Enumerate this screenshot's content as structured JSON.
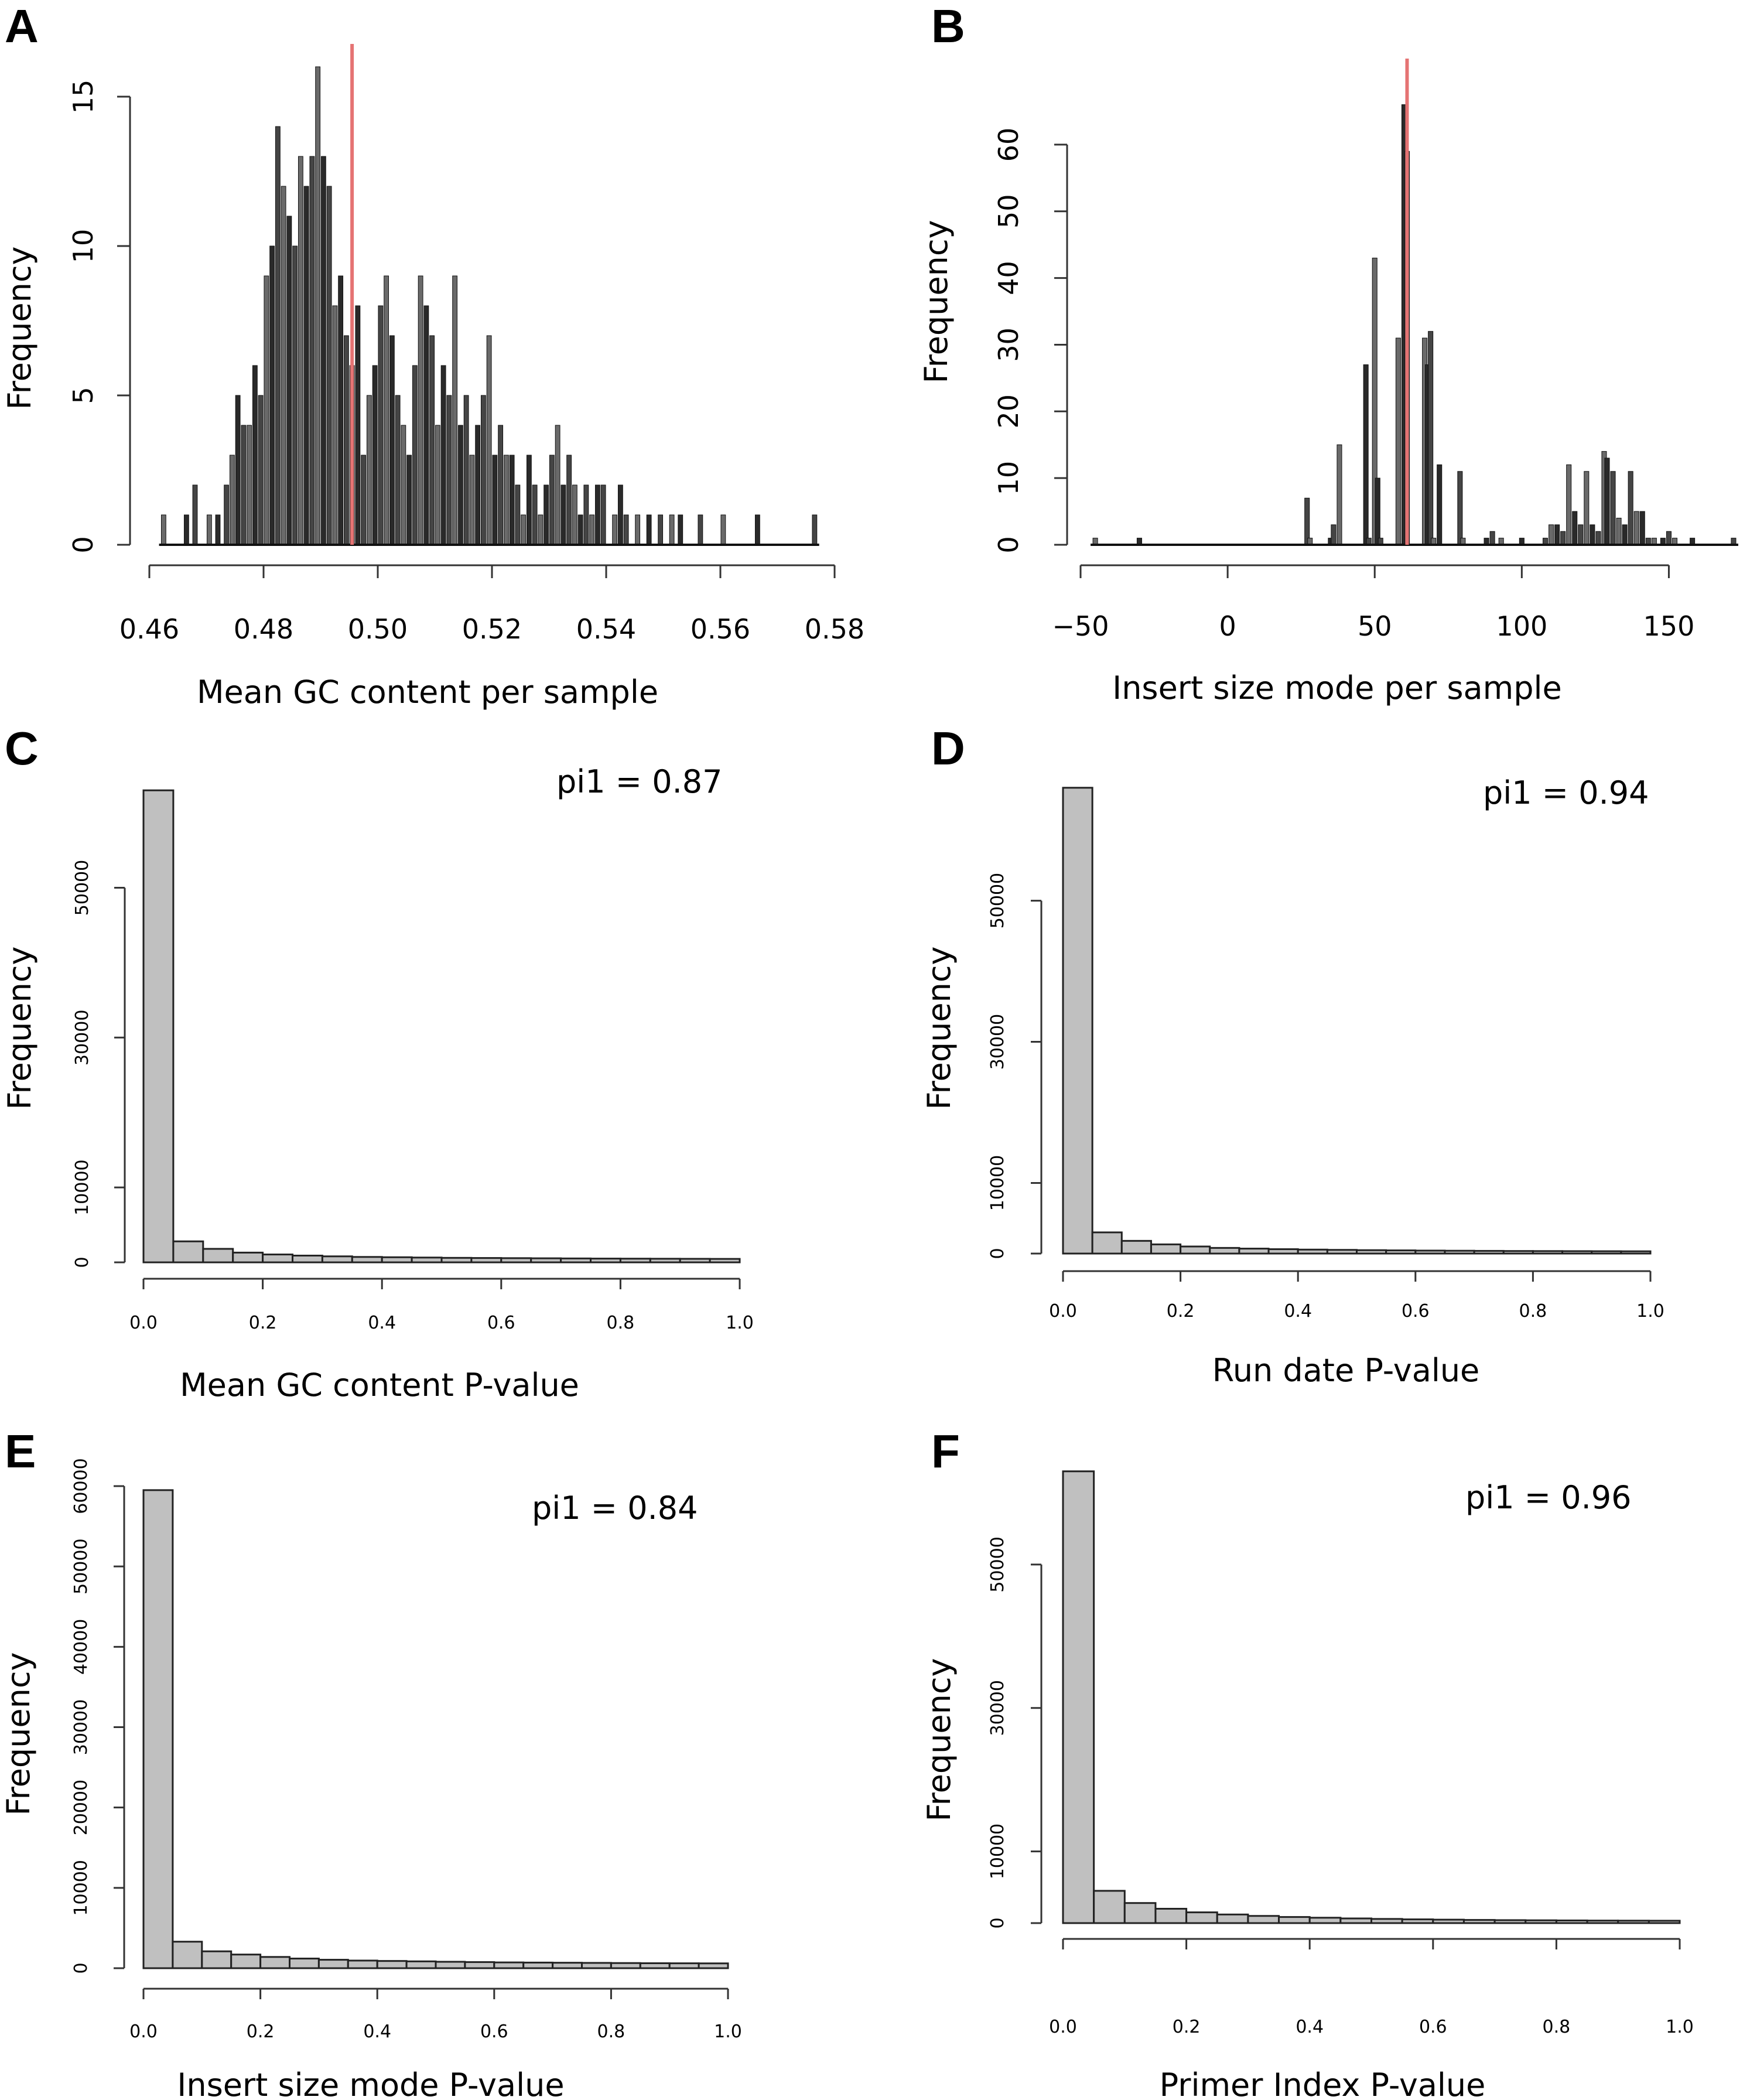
{
  "chart_data": [
    {
      "panel": "A",
      "type": "bar",
      "style": "dense-histogram",
      "xlabel": "Mean GC content per sample",
      "ylabel": "Frequency",
      "xlim": [
        0.46,
        0.58
      ],
      "ylim": [
        0,
        15
      ],
      "xticks": [
        0.46,
        0.48,
        0.5,
        0.52,
        0.54,
        0.56,
        0.58
      ],
      "xtick_labels": [
        "0.46",
        "0.48",
        "0.50",
        "0.52",
        "0.54",
        "0.56",
        "0.58"
      ],
      "yticks": [
        0,
        5,
        10,
        15
      ],
      "ytick_labels": [
        "0",
        "5",
        "10",
        "15"
      ],
      "bin_width": 0.0005,
      "bars": [
        [
          0.4625,
          1
        ],
        [
          0.4665,
          1
        ],
        [
          0.468,
          2
        ],
        [
          0.4705,
          1
        ],
        [
          0.472,
          1
        ],
        [
          0.4735,
          2
        ],
        [
          0.4745,
          3
        ],
        [
          0.4755,
          5
        ],
        [
          0.4765,
          4
        ],
        [
          0.4775,
          4
        ],
        [
          0.4785,
          6
        ],
        [
          0.4795,
          5
        ],
        [
          0.4805,
          9
        ],
        [
          0.4815,
          10
        ],
        [
          0.4825,
          14
        ],
        [
          0.4835,
          12
        ],
        [
          0.4845,
          11
        ],
        [
          0.4855,
          10
        ],
        [
          0.4865,
          13
        ],
        [
          0.4875,
          12
        ],
        [
          0.4885,
          13
        ],
        [
          0.4895,
          16
        ],
        [
          0.4905,
          13
        ],
        [
          0.4915,
          12
        ],
        [
          0.4925,
          8
        ],
        [
          0.4935,
          9
        ],
        [
          0.4945,
          7
        ],
        [
          0.4955,
          6
        ],
        [
          0.4965,
          8
        ],
        [
          0.4975,
          3
        ],
        [
          0.4985,
          5
        ],
        [
          0.4995,
          6
        ],
        [
          0.5005,
          8
        ],
        [
          0.5015,
          9
        ],
        [
          0.5025,
          7
        ],
        [
          0.5035,
          5
        ],
        [
          0.5045,
          4
        ],
        [
          0.5055,
          3
        ],
        [
          0.5065,
          6
        ],
        [
          0.5075,
          9
        ],
        [
          0.5085,
          8
        ],
        [
          0.5095,
          7
        ],
        [
          0.5105,
          4
        ],
        [
          0.5115,
          6
        ],
        [
          0.5125,
          5
        ],
        [
          0.5135,
          9
        ],
        [
          0.5145,
          4
        ],
        [
          0.5155,
          5
        ],
        [
          0.5165,
          3
        ],
        [
          0.5175,
          4
        ],
        [
          0.5185,
          5
        ],
        [
          0.5195,
          7
        ],
        [
          0.5205,
          3
        ],
        [
          0.5215,
          4
        ],
        [
          0.5225,
          3
        ],
        [
          0.5235,
          3
        ],
        [
          0.5245,
          2
        ],
        [
          0.5255,
          1
        ],
        [
          0.5265,
          3
        ],
        [
          0.5275,
          2
        ],
        [
          0.5285,
          1
        ],
        [
          0.5295,
          2
        ],
        [
          0.5305,
          3
        ],
        [
          0.5315,
          4
        ],
        [
          0.5325,
          2
        ],
        [
          0.5335,
          3
        ],
        [
          0.5345,
          2
        ],
        [
          0.5355,
          1
        ],
        [
          0.5365,
          2
        ],
        [
          0.5375,
          1
        ],
        [
          0.5385,
          2
        ],
        [
          0.5395,
          2
        ],
        [
          0.5415,
          1
        ],
        [
          0.5425,
          2
        ],
        [
          0.5435,
          1
        ],
        [
          0.5455,
          1
        ],
        [
          0.5475,
          1
        ],
        [
          0.5495,
          1
        ],
        [
          0.5515,
          1
        ],
        [
          0.553,
          1
        ],
        [
          0.5565,
          1
        ],
        [
          0.5605,
          1
        ],
        [
          0.5665,
          1
        ],
        [
          0.5765,
          1
        ]
      ],
      "reference_line": 0.4955
    },
    {
      "panel": "B",
      "type": "bar",
      "style": "dense-histogram",
      "xlabel": "Insert size mode per sample",
      "ylabel": "Frequency",
      "xlim": [
        -50,
        175
      ],
      "ylim": [
        0,
        65
      ],
      "xticks": [
        -50,
        0,
        50,
        100,
        150
      ],
      "xtick_labels": [
        "−50",
        "0",
        "50",
        "100",
        "150"
      ],
      "yticks": [
        0,
        10,
        20,
        30,
        40,
        50,
        60
      ],
      "ytick_labels": [
        "0",
        "10",
        "20",
        "30",
        "40",
        "50",
        "60"
      ],
      "bin_width": 1,
      "bars": [
        [
          -45,
          1
        ],
        [
          -30,
          1
        ],
        [
          27,
          7
        ],
        [
          28,
          1
        ],
        [
          35,
          1
        ],
        [
          36,
          3
        ],
        [
          38,
          15
        ],
        [
          47,
          27
        ],
        [
          48,
          1
        ],
        [
          50,
          43
        ],
        [
          51,
          10
        ],
        [
          52,
          1
        ],
        [
          58,
          31
        ],
        [
          60,
          66
        ],
        [
          61,
          59
        ],
        [
          67,
          31
        ],
        [
          68,
          27
        ],
        [
          69,
          32
        ],
        [
          70,
          1
        ],
        [
          72,
          12
        ],
        [
          79,
          11
        ],
        [
          80,
          1
        ],
        [
          88,
          1
        ],
        [
          90,
          2
        ],
        [
          93,
          1
        ],
        [
          100,
          1
        ],
        [
          108,
          1
        ],
        [
          110,
          3
        ],
        [
          112,
          3
        ],
        [
          114,
          2
        ],
        [
          116,
          12
        ],
        [
          118,
          5
        ],
        [
          120,
          3
        ],
        [
          122,
          11
        ],
        [
          124,
          3
        ],
        [
          126,
          2
        ],
        [
          128,
          14
        ],
        [
          129,
          13
        ],
        [
          131,
          11
        ],
        [
          133,
          4
        ],
        [
          135,
          3
        ],
        [
          137,
          11
        ],
        [
          139,
          5
        ],
        [
          141,
          5
        ],
        [
          143,
          1
        ],
        [
          145,
          1
        ],
        [
          148,
          1
        ],
        [
          150,
          2
        ],
        [
          152,
          1
        ],
        [
          158,
          1
        ],
        [
          172,
          1
        ]
      ],
      "reference_line": 61
    },
    {
      "panel": "C",
      "type": "bar",
      "xlabel": "Mean GC content P-value",
      "ylabel": "Frequency",
      "annotation": "pi1 = 0.87",
      "xlim": [
        0,
        1
      ],
      "ylim": [
        0,
        62000
      ],
      "xticks": [
        0,
        0.2,
        0.4,
        0.6,
        0.8,
        1.0
      ],
      "xtick_labels": [
        "0.0",
        "0.2",
        "0.4",
        "0.6",
        "0.8",
        "1.0"
      ],
      "yticks": [
        0,
        10000,
        30000,
        50000
      ],
      "ytick_labels": [
        "0",
        "10000",
        "30000",
        "50000"
      ],
      "bin_width": 0.05,
      "values": [
        63000,
        2800,
        1800,
        1300,
        1050,
        900,
        800,
        720,
        680,
        640,
        600,
        580,
        560,
        540,
        520,
        500,
        490,
        480,
        470,
        460
      ]
    },
    {
      "panel": "D",
      "type": "bar",
      "xlabel": "Run date P-value",
      "ylabel": "Frequency",
      "annotation": "pi1 = 0.94",
      "xlim": [
        0,
        1
      ],
      "ylim": [
        0,
        62000
      ],
      "xticks": [
        0,
        0.2,
        0.4,
        0.6,
        0.8,
        1.0
      ],
      "xtick_labels": [
        "0.0",
        "0.2",
        "0.4",
        "0.6",
        "0.8",
        "1.0"
      ],
      "yticks": [
        0,
        10000,
        30000,
        50000
      ],
      "ytick_labels": [
        "0",
        "10000",
        "30000",
        "50000"
      ],
      "bin_width": 0.05,
      "values": [
        66000,
        3000,
        1800,
        1300,
        1000,
        800,
        700,
        620,
        560,
        520,
        480,
        450,
        420,
        400,
        380,
        360,
        350,
        340,
        330,
        320
      ]
    },
    {
      "panel": "E",
      "type": "bar",
      "xlabel": "Insert size mode P-value",
      "ylabel": "Frequency",
      "annotation": "pi1 = 0.84",
      "xlim": [
        0,
        1
      ],
      "ylim": [
        0,
        60000
      ],
      "xticks": [
        0,
        0.2,
        0.4,
        0.6,
        0.8,
        1.0
      ],
      "xtick_labels": [
        "0.0",
        "0.2",
        "0.4",
        "0.6",
        "0.8",
        "1.0"
      ],
      "yticks": [
        0,
        10000,
        20000,
        30000,
        40000,
        50000,
        60000
      ],
      "ytick_labels": [
        "0",
        "10000",
        "20000",
        "30000",
        "40000",
        "50000",
        "60000"
      ],
      "bin_width": 0.05,
      "values": [
        59500,
        3300,
        2100,
        1700,
        1400,
        1200,
        1050,
        950,
        900,
        850,
        800,
        760,
        720,
        700,
        680,
        660,
        640,
        620,
        610,
        600
      ]
    },
    {
      "panel": "F",
      "type": "bar",
      "xlabel": "Primer Index P-value",
      "ylabel": "Frequency",
      "annotation": "pi1 = 0.96",
      "xlim": [
        0,
        1
      ],
      "ylim": [
        0,
        62000
      ],
      "xticks": [
        0,
        0.2,
        0.4,
        0.6,
        0.8,
        1.0
      ],
      "xtick_labels": [
        "0.0",
        "0.2",
        "0.4",
        "0.6",
        "0.8",
        "1.0"
      ],
      "yticks": [
        0,
        10000,
        30000,
        50000
      ],
      "ytick_labels": [
        "0",
        "10000",
        "30000",
        "50000"
      ],
      "bin_width": 0.05,
      "values": [
        63000,
        4500,
        2800,
        2000,
        1500,
        1200,
        1000,
        850,
        750,
        650,
        580,
        520,
        480,
        440,
        410,
        390,
        370,
        350,
        340,
        330
      ]
    }
  ]
}
